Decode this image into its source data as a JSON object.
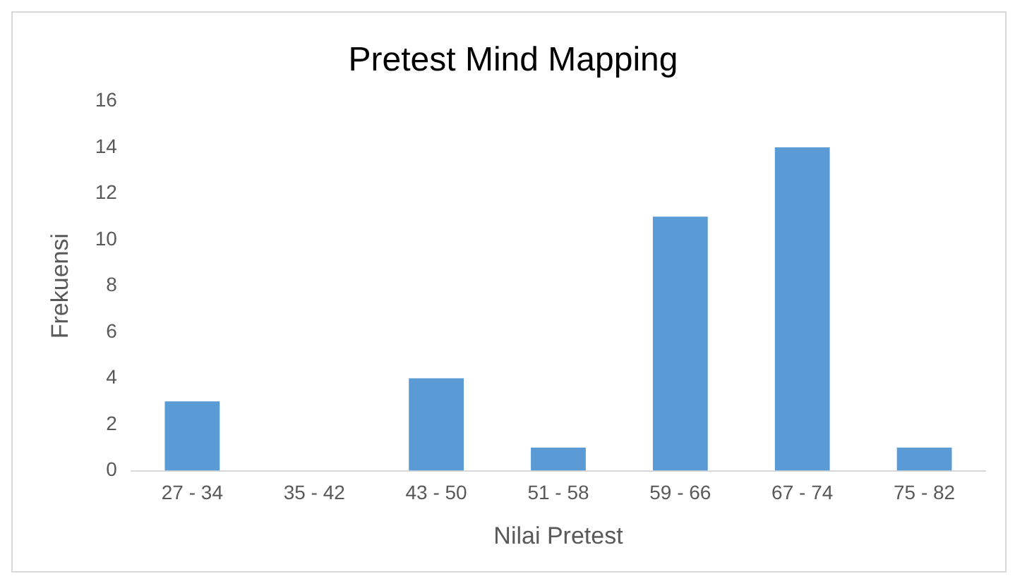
{
  "chart_data": {
    "type": "bar",
    "title": "Pretest Mind Mapping",
    "xlabel": "Nilai Pretest",
    "ylabel": "Frekuensi",
    "categories": [
      "27 - 34",
      "35 - 42",
      "43 - 50",
      "51 - 58",
      "59 - 66",
      "67 - 74",
      "75 - 82"
    ],
    "values": [
      3,
      0,
      4,
      1,
      11,
      14,
      1
    ],
    "color": "#5b9bd5",
    "ylim": [
      0,
      16
    ],
    "yticks": [
      0,
      2,
      4,
      6,
      8,
      10,
      12,
      14,
      16
    ],
    "grid": false
  }
}
